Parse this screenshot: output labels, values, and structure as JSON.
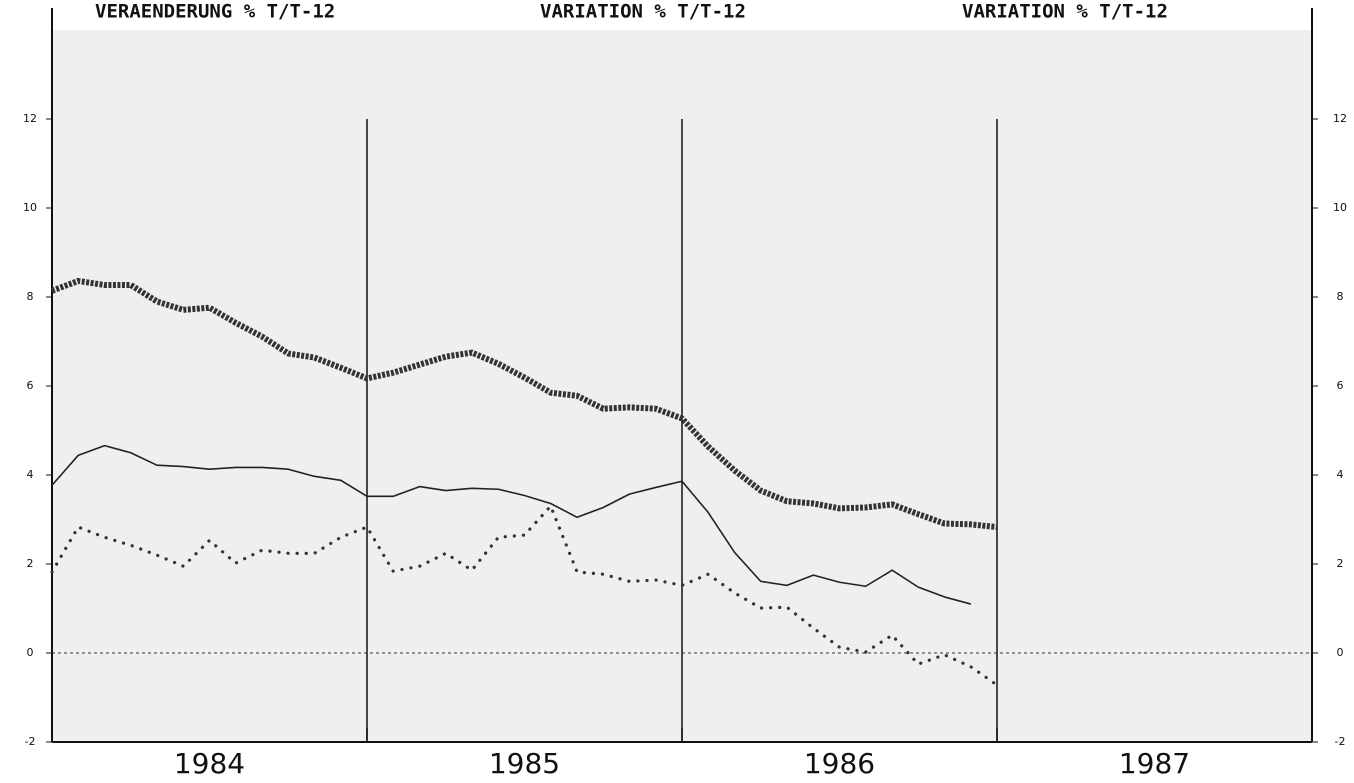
{
  "chart_data": {
    "type": "line",
    "titles": [
      "VERAENDERUNG % T/T-12",
      "VARIATION % T/T-12",
      "VARIATION % T/T-12"
    ],
    "x": [
      1984,
      1984.083,
      1984.167,
      1984.25,
      1984.333,
      1984.417,
      1984.5,
      1984.583,
      1984.667,
      1984.75,
      1984.833,
      1984.917,
      1985,
      1985.083,
      1985.167,
      1985.25,
      1985.333,
      1985.417,
      1985.5,
      1985.583,
      1985.667,
      1985.75,
      1985.833,
      1985.917,
      1986,
      1986.083,
      1986.167,
      1986.25,
      1986.333,
      1986.417,
      1986.5,
      1986.583,
      1986.667,
      1986.75,
      1986.833,
      1986.917,
      1987
    ],
    "xlim": [
      1984,
      1988
    ],
    "xticks": [
      {
        "value": 1984.5,
        "label": "1984"
      },
      {
        "value": 1985.5,
        "label": "1985"
      },
      {
        "value": 1986.5,
        "label": "1986"
      },
      {
        "value": 1987.5,
        "label": "1987"
      }
    ],
    "vlines": [
      1985,
      1986,
      1987
    ],
    "ylim": [
      -2,
      14
    ],
    "yticks": [
      -2,
      0,
      2,
      4,
      6,
      8,
      10,
      12
    ],
    "hline": 0,
    "series": [
      {
        "color": "#333333",
        "line_style": "thick-dotted",
        "values": [
          8.14,
          8.36,
          8.27,
          8.27,
          7.9,
          7.71,
          7.76,
          7.42,
          7.11,
          6.73,
          6.64,
          6.41,
          6.17,
          6.3,
          6.48,
          6.66,
          6.75,
          6.5,
          6.19,
          5.85,
          5.78,
          5.49,
          5.52,
          5.49,
          5.27,
          4.64,
          4.1,
          3.65,
          3.41,
          3.36,
          3.25,
          3.27,
          3.34,
          3.12,
          2.91,
          2.89,
          2.83
        ]
      },
      {
        "color": "#222222",
        "line_style": "solid",
        "values": [
          3.77,
          4.44,
          4.66,
          4.5,
          4.22,
          4.19,
          4.13,
          4.17,
          4.17,
          4.13,
          3.97,
          3.88,
          3.52,
          3.52,
          3.74,
          3.65,
          3.7,
          3.68,
          3.54,
          3.36,
          3.05,
          3.27,
          3.57,
          3.72,
          3.86,
          3.16,
          2.26,
          1.61,
          1.52,
          1.75,
          1.59,
          1.5,
          1.86,
          1.48,
          1.26,
          1.1,
          null
        ]
      },
      {
        "color": "#333333",
        "line_style": "dotted",
        "values": [
          1.82,
          2.83,
          2.6,
          2.42,
          2.2,
          1.95,
          2.53,
          2.02,
          2.31,
          2.24,
          2.24,
          2.6,
          2.83,
          1.84,
          1.95,
          2.24,
          1.86,
          2.6,
          2.65,
          3.3,
          1.82,
          1.77,
          1.61,
          1.64,
          1.52,
          1.77,
          1.35,
          1.01,
          1.03,
          0.56,
          0.13,
          0.02,
          0.4,
          -0.25,
          -0.04,
          -0.31,
          -0.72
        ]
      }
    ]
  }
}
